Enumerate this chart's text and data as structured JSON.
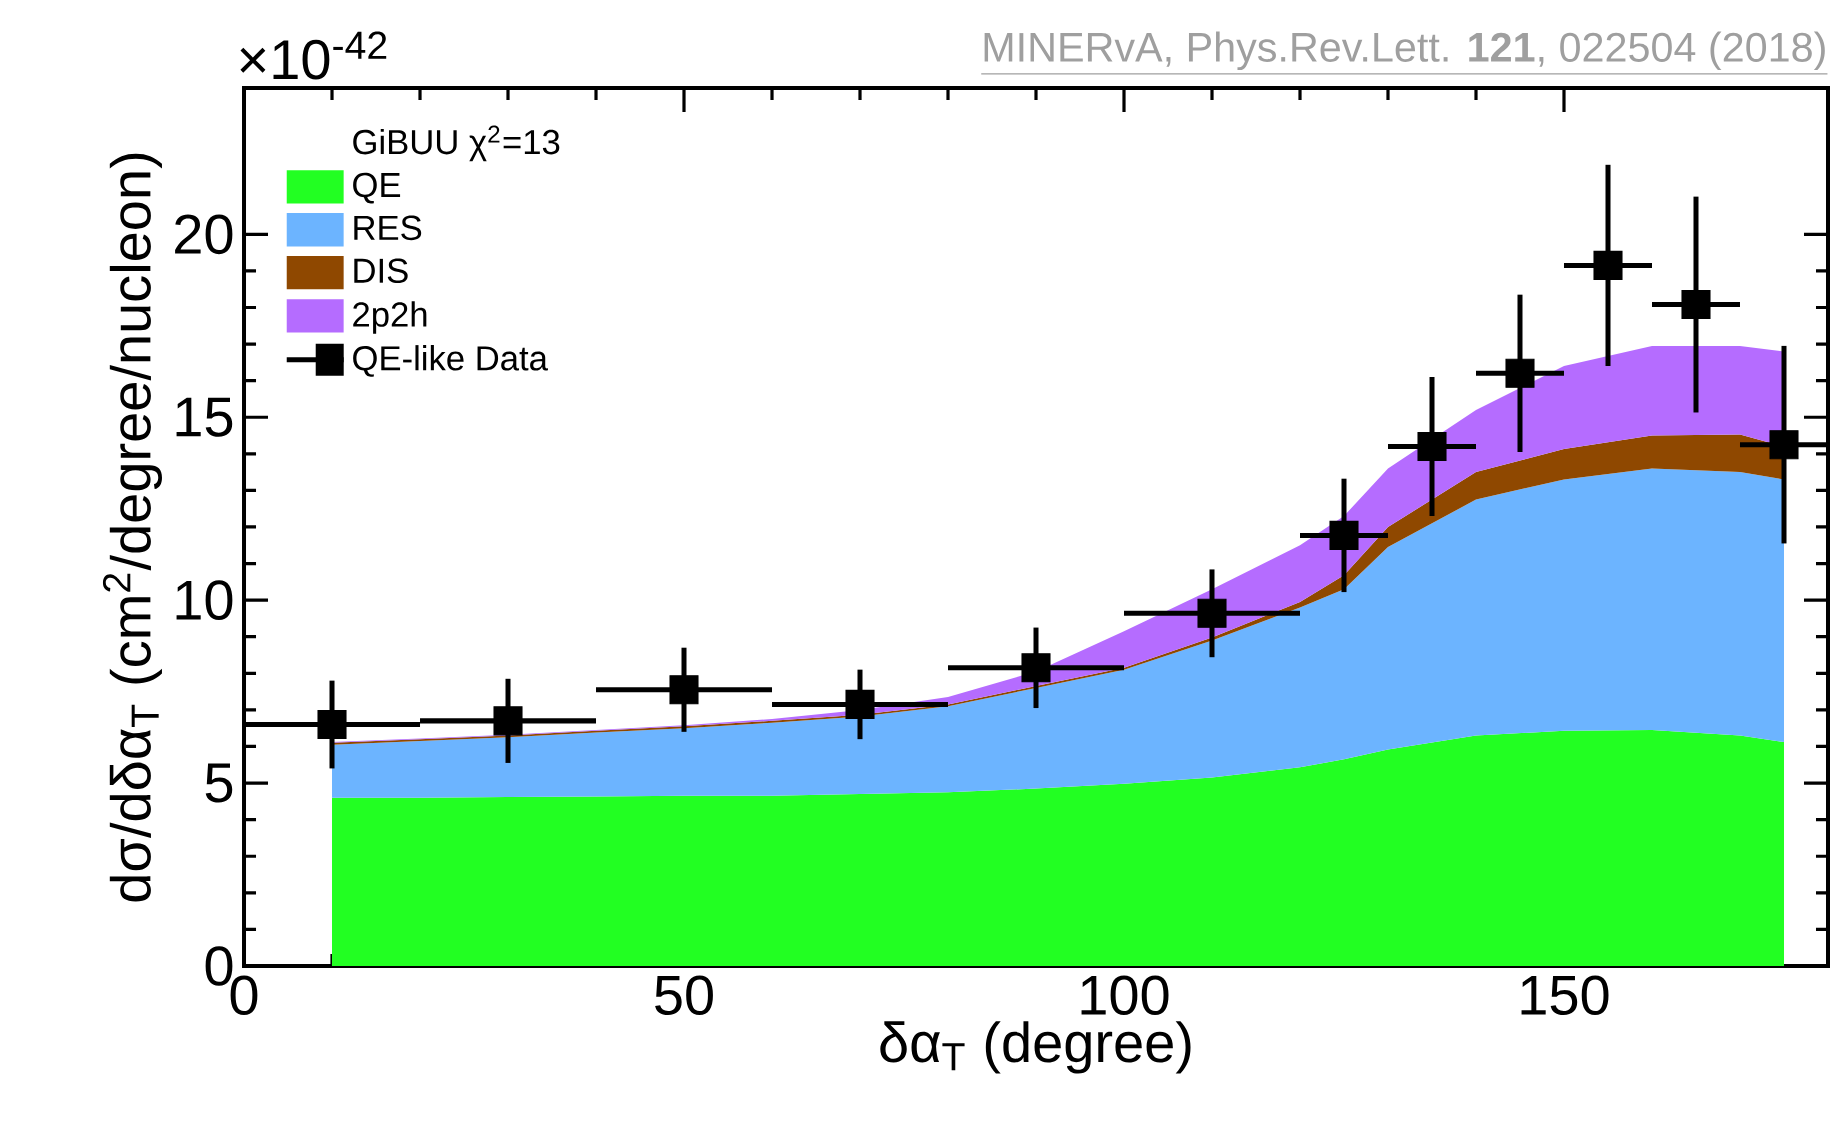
{
  "chart_data": {
    "type": "area",
    "stacked": true,
    "xlabel": "δα$_{T}$ (degree)",
    "ylabel": "dσ/dδα$_{T}$ (cm$^{2}$/degree/nucleon)",
    "legend_title": "GiBUU  χ$^{2}$=13",
    "annotations": [
      "×10$^{-42}$",
      "MINERvA, Phys.Rev.Lett. **121**, 022504 (2018)"
    ],
    "xlim": [
      0,
      180
    ],
    "ylim": [
      0,
      24
    ],
    "xticks": [
      0,
      50,
      100,
      150
    ],
    "yticks": [
      0,
      5,
      10,
      15,
      20
    ],
    "legend": "top left",
    "x": [
      10,
      20,
      30,
      40,
      50,
      60,
      70,
      80,
      90,
      100,
      110,
      120,
      125,
      130,
      140,
      150,
      160,
      170,
      175
    ],
    "series": [
      {
        "name": "QE",
        "color": "#22ff22",
        "values": [
          4.6,
          4.6,
          4.62,
          4.63,
          4.65,
          4.65,
          4.7,
          4.75,
          4.85,
          4.98,
          5.15,
          5.43,
          5.65,
          5.92,
          6.3,
          6.43,
          6.45,
          6.3,
          6.12
        ]
      },
      {
        "name": "RES",
        "color": "#6cb4ff",
        "values": [
          1.45,
          1.55,
          1.63,
          1.75,
          1.85,
          2.0,
          2.12,
          2.35,
          2.75,
          3.12,
          3.75,
          4.37,
          4.65,
          5.53,
          6.45,
          6.87,
          7.15,
          7.2,
          7.18
        ]
      },
      {
        "name": "DIS",
        "color": "#8f4800",
        "values": [
          0.05,
          0.05,
          0.05,
          0.05,
          0.05,
          0.05,
          0.05,
          0.05,
          0.05,
          0.05,
          0.08,
          0.15,
          0.38,
          0.55,
          0.75,
          0.83,
          0.9,
          1.03,
          0.9
        ]
      },
      {
        "name": "2p2h",
        "color": "#b56cff",
        "values": [
          0.02,
          0.02,
          0.02,
          0.02,
          0.03,
          0.05,
          0.13,
          0.2,
          0.4,
          1.0,
          1.32,
          1.55,
          1.62,
          1.6,
          1.7,
          2.27,
          2.45,
          2.42,
          2.6
        ]
      },
      {
        "name": "QE-like Data",
        "type": "scatter",
        "marker": "square",
        "color": "#000000",
        "x": [
          10,
          30,
          50,
          70,
          90,
          110,
          125,
          135,
          145,
          155,
          165,
          175
        ],
        "values": [
          6.6,
          6.7,
          7.55,
          7.15,
          8.15,
          9.64,
          11.77,
          14.2,
          16.2,
          19.15,
          18.08,
          14.25
        ],
        "errors": [
          1.2,
          1.15,
          1.15,
          0.95,
          1.1,
          1.2,
          1.55,
          1.9,
          2.15,
          2.75,
          2.95,
          2.7
        ],
        "xerrors": [
          10,
          10,
          10,
          10,
          10,
          10,
          5,
          5,
          5,
          5,
          5,
          5
        ]
      }
    ]
  }
}
